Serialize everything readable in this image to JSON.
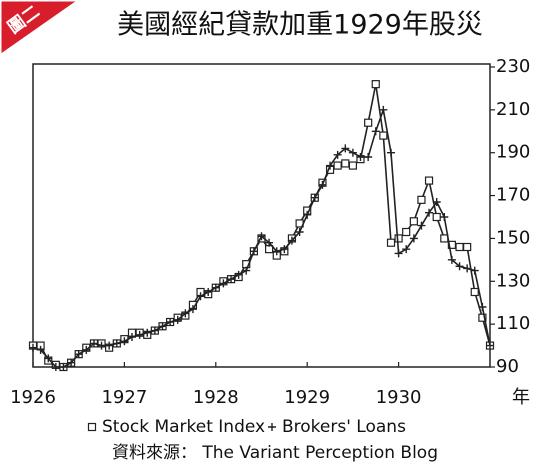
{
  "corner_label": "圖二",
  "chart_data": {
    "type": "line",
    "title": "美國經紀貸款加重1929年股災",
    "x_label": "年",
    "source": "資料來源： The Variant Perception Blog",
    "xlim": [
      1926,
      1931
    ],
    "xticks": [
      1926,
      1927,
      1928,
      1929,
      1930
    ],
    "ylim": [
      90,
      230
    ],
    "yticks": [
      90,
      110,
      130,
      150,
      170,
      190,
      210,
      230
    ],
    "x": [
      1926,
      1926.083,
      1926.167,
      1926.25,
      1926.333,
      1926.417,
      1926.5,
      1926.583,
      1926.667,
      1926.75,
      1926.833,
      1926.917,
      1927,
      1927.083,
      1927.167,
      1927.25,
      1927.333,
      1927.417,
      1927.5,
      1927.583,
      1927.667,
      1927.75,
      1927.833,
      1927.917,
      1928,
      1928.083,
      1928.167,
      1928.25,
      1928.333,
      1928.417,
      1928.5,
      1928.583,
      1928.667,
      1928.75,
      1928.833,
      1928.917,
      1929,
      1929.083,
      1929.167,
      1929.25,
      1929.333,
      1929.417,
      1929.5,
      1929.583,
      1929.667,
      1929.75,
      1929.833,
      1929.917,
      1930,
      1930.083,
      1930.167,
      1930.25,
      1930.333,
      1930.417,
      1930.5,
      1930.583,
      1930.667,
      1930.75,
      1930.833,
      1930.917,
      1931
    ],
    "series": [
      {
        "name": "Stock Market Index",
        "color": "#222222",
        "marker": "square",
        "values": [
          100,
          100,
          93,
          91,
          90,
          92,
          96,
          99,
          101,
          101,
          99,
          101,
          103,
          106,
          106,
          105,
          107,
          109,
          111,
          113,
          114,
          119,
          125,
          124,
          127,
          130,
          131,
          132,
          138,
          144,
          150,
          145,
          142,
          144,
          150,
          157,
          163,
          169,
          176,
          182,
          184,
          185,
          184,
          187,
          204,
          222,
          198,
          148,
          150,
          153,
          158,
          168,
          177,
          160,
          150,
          147,
          146,
          146,
          125,
          113,
          100
        ]
      },
      {
        "name": "Brokers' Loans",
        "color": "#222222",
        "marker": "plus",
        "values": [
          99,
          98,
          94,
          90,
          90,
          92,
          96,
          98,
          101,
          100,
          100,
          101,
          102,
          104,
          105,
          106,
          107,
          109,
          111,
          112,
          115,
          117,
          123,
          125,
          127,
          129,
          131,
          133,
          135,
          144,
          151,
          148,
          144,
          145,
          149,
          153,
          161,
          169,
          175,
          184,
          189,
          192,
          190,
          188,
          188,
          200,
          210,
          190,
          143,
          145,
          150,
          156,
          162,
          167,
          160,
          140,
          137,
          136,
          135,
          118,
          100
        ]
      }
    ]
  }
}
